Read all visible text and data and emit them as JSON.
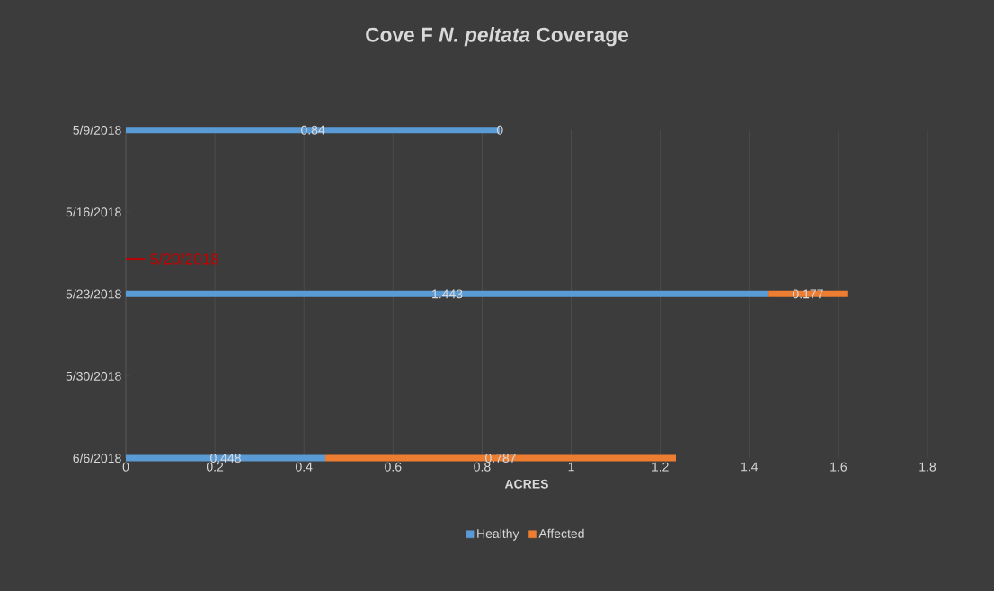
{
  "chart_data": {
    "type": "bar",
    "orientation": "horizontal",
    "stacked": true,
    "title": "Cove F *N. peltata* Coverage",
    "xlabel": "ACRES",
    "x": [
      "2018-05-09",
      "2018-05-23",
      "2018-06-06"
    ],
    "series": [
      {
        "name": "Healthy",
        "color": "#5b9bd5",
        "values": [
          0.84,
          1.443,
          0.448
        ]
      },
      {
        "name": "Affected",
        "color": "#ed7d31",
        "values": [
          0,
          0.177,
          0.787
        ]
      }
    ],
    "data_labels": true,
    "xlim": [
      0,
      1.8
    ],
    "xticks": [
      0,
      0.2,
      0.4,
      0.6,
      0.8,
      1,
      1.2,
      1.4,
      1.6,
      1.8
    ],
    "ylim": [
      "2018-06-06",
      "2018-05-09"
    ],
    "yticks": [
      {
        "value": "2018-05-09",
        "label": "5/9/2018"
      },
      {
        "value": "2018-05-16",
        "label": "5/16/2018"
      },
      {
        "value": "2018-05-23",
        "label": "5/23/2018"
      },
      {
        "value": "2018-05-30",
        "label": "5/30/2018"
      },
      {
        "value": "2018-06-06",
        "label": "6/6/2018"
      }
    ],
    "ref_lines": [
      {
        "axis": "y",
        "value": "2018-05-20",
        "label": "5/20/2018",
        "color": "#c00000"
      }
    ],
    "grid": "x",
    "legend": "bottom"
  }
}
